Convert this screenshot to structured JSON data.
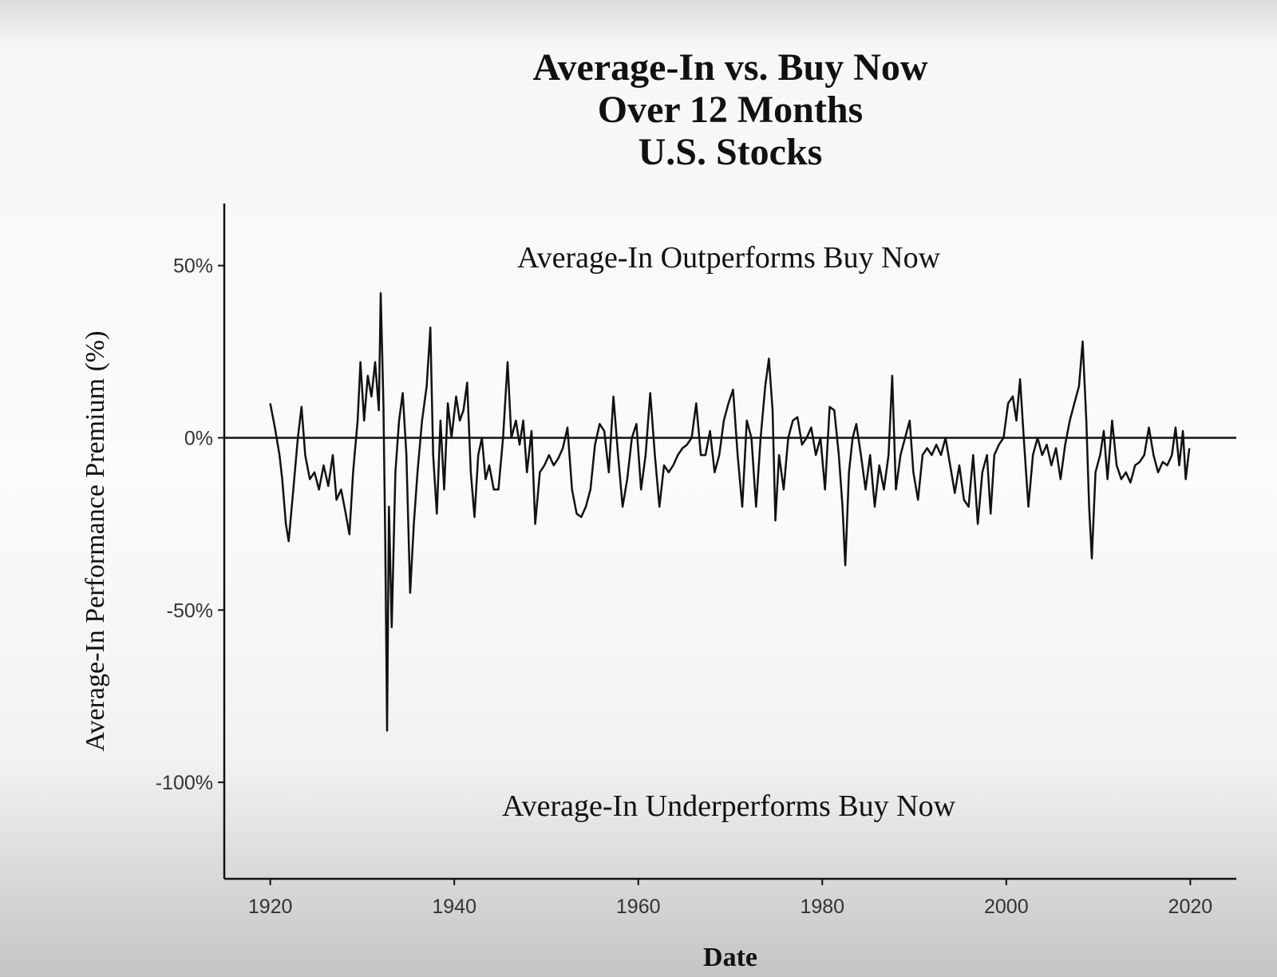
{
  "chart_data": {
    "type": "line",
    "title": [
      "Average-In vs. Buy Now",
      "Over 12 Months",
      "U.S. Stocks"
    ],
    "annotations": [
      "Average-In Outperforms Buy Now",
      "Average-In Underperforms Buy Now"
    ],
    "xlabel": "Date",
    "ylabel": "Average-In Performance Premium (%)",
    "xlim": [
      1915,
      2025
    ],
    "xticks": [
      1920,
      1940,
      1960,
      1980,
      2000,
      2020
    ],
    "ylim": [
      -128,
      68
    ],
    "yticks": [
      {
        "value": -100,
        "label": "-100%"
      },
      {
        "value": -50,
        "label": "-50%"
      },
      {
        "value": 0,
        "label": "0%"
      },
      {
        "value": 50,
        "label": "50%"
      }
    ],
    "reference_line": 0,
    "grid": false,
    "color": "#111111",
    "x": [
      1920.0,
      1920.5,
      1921.0,
      1921.3,
      1921.7,
      1922.0,
      1922.5,
      1923.0,
      1923.4,
      1923.8,
      1924.3,
      1924.8,
      1925.3,
      1925.8,
      1926.3,
      1926.8,
      1927.2,
      1927.7,
      1928.2,
      1928.6,
      1929.0,
      1929.5,
      1929.8,
      1930.2,
      1930.6,
      1931.0,
      1931.4,
      1931.8,
      1932.0,
      1932.3,
      1932.5,
      1932.7,
      1932.9,
      1933.2,
      1933.6,
      1934.0,
      1934.4,
      1934.8,
      1935.2,
      1935.6,
      1936.0,
      1936.5,
      1937.0,
      1937.4,
      1937.7,
      1938.1,
      1938.5,
      1938.9,
      1939.3,
      1939.7,
      1940.2,
      1940.6,
      1941.0,
      1941.4,
      1941.8,
      1942.2,
      1942.6,
      1943.0,
      1943.4,
      1943.8,
      1944.3,
      1944.8,
      1945.3,
      1945.8,
      1946.2,
      1946.7,
      1947.1,
      1947.5,
      1947.9,
      1948.4,
      1948.8,
      1949.3,
      1949.8,
      1950.3,
      1950.8,
      1951.3,
      1951.8,
      1952.3,
      1952.8,
      1953.3,
      1953.8,
      1954.3,
      1954.8,
      1955.3,
      1955.8,
      1956.3,
      1956.8,
      1957.3,
      1957.8,
      1958.3,
      1958.8,
      1959.3,
      1959.8,
      1960.3,
      1960.8,
      1961.3,
      1961.8,
      1962.3,
      1962.8,
      1963.3,
      1963.8,
      1964.3,
      1964.8,
      1965.3,
      1965.8,
      1966.3,
      1966.8,
      1967.3,
      1967.8,
      1968.3,
      1968.8,
      1969.3,
      1969.8,
      1970.3,
      1970.8,
      1971.3,
      1971.8,
      1972.3,
      1972.8,
      1973.3,
      1973.8,
      1974.2,
      1974.6,
      1974.9,
      1975.3,
      1975.8,
      1976.3,
      1976.8,
      1977.3,
      1977.8,
      1978.3,
      1978.8,
      1979.3,
      1979.8,
      1980.3,
      1980.8,
      1981.3,
      1981.8,
      1982.2,
      1982.5,
      1982.9,
      1983.3,
      1983.7,
      1984.2,
      1984.7,
      1985.2,
      1985.7,
      1986.2,
      1986.7,
      1987.2,
      1987.6,
      1988.0,
      1988.5,
      1989.0,
      1989.5,
      1989.9,
      1990.4,
      1990.9,
      1991.4,
      1991.9,
      1992.4,
      1992.9,
      1993.4,
      1993.9,
      1994.4,
      1994.9,
      1995.4,
      1995.9,
      1996.4,
      1996.9,
      1997.4,
      1997.9,
      1998.3,
      1998.7,
      1999.2,
      1999.7,
      2000.2,
      2000.7,
      2001.1,
      2001.5,
      2001.9,
      2002.4,
      2002.9,
      2003.4,
      2003.9,
      2004.4,
      2004.9,
      2005.4,
      2005.9,
      2006.4,
      2006.9,
      2007.4,
      2007.9,
      2008.3,
      2008.7,
      2009.0,
      2009.3,
      2009.7,
      2010.2,
      2010.6,
      2011.0,
      2011.5,
      2012.0,
      2012.5,
      2013.0,
      2013.5,
      2014.0,
      2014.5,
      2015.0,
      2015.5,
      2016.0,
      2016.5,
      2017.0,
      2017.5,
      2018.0,
      2018.4,
      2018.8,
      2019.2,
      2019.5,
      2019.9
    ],
    "values": [
      10,
      3,
      -5,
      -12,
      -25,
      -30,
      -15,
      0,
      9,
      -5,
      -12,
      -10,
      -15,
      -8,
      -14,
      -5,
      -18,
      -15,
      -22,
      -28,
      -10,
      5,
      22,
      5,
      18,
      12,
      22,
      8,
      42,
      10,
      -30,
      -85,
      -20,
      -55,
      -10,
      5,
      13,
      -5,
      -45,
      -25,
      -10,
      5,
      15,
      32,
      -5,
      -22,
      5,
      -15,
      10,
      0,
      12,
      5,
      8,
      16,
      -10,
      -23,
      -5,
      0,
      -12,
      -8,
      -15,
      -15,
      0,
      22,
      0,
      5,
      -2,
      5,
      -10,
      2,
      -25,
      -10,
      -8,
      -5,
      -8,
      -6,
      -3,
      3,
      -15,
      -22,
      -23,
      -20,
      -15,
      -2,
      4,
      2,
      -10,
      12,
      -5,
      -20,
      -12,
      0,
      4,
      -15,
      -5,
      13,
      -5,
      -20,
      -8,
      -10,
      -8,
      -5,
      -3,
      -2,
      0,
      10,
      -5,
      -5,
      2,
      -10,
      -5,
      5,
      10,
      14,
      -5,
      -20,
      5,
      0,
      -20,
      0,
      15,
      23,
      8,
      -24,
      -5,
      -15,
      0,
      5,
      6,
      -2,
      0,
      3,
      -5,
      0,
      -15,
      9,
      8,
      -5,
      -20,
      -37,
      -10,
      0,
      4,
      -5,
      -15,
      -5,
      -20,
      -8,
      -15,
      -5,
      18,
      -15,
      -5,
      0,
      5,
      -10,
      -18,
      -5,
      -3,
      -5,
      -2,
      -5,
      0,
      -8,
      -16,
      -8,
      -18,
      -20,
      -5,
      -25,
      -10,
      -5,
      -22,
      -5,
      -2,
      0,
      10,
      12,
      5,
      17,
      0,
      -20,
      -5,
      0,
      -5,
      -2,
      -8,
      -3,
      -12,
      -2,
      5,
      10,
      15,
      28,
      5,
      -20,
      -35,
      -10,
      -5,
      2,
      -12,
      5,
      -8,
      -12,
      -10,
      -13,
      -8,
      -7,
      -5,
      3,
      -5,
      -10,
      -7,
      -8,
      -5,
      3,
      -8,
      2,
      -12,
      -3
    ]
  }
}
